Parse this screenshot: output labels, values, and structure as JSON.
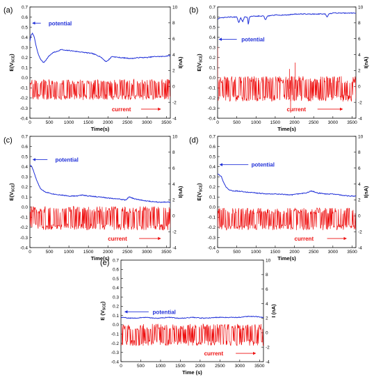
{
  "figure": {
    "colors": {
      "potential": "#1f2fd8",
      "current": "#ee1111",
      "axis": "#000000"
    }
  },
  "chart_data": [
    {
      "panel": "(a)",
      "type": "line",
      "xlabel": "Time(s)",
      "ylabel_left": "E(V",
      "ylabel_left_sub": "SCE",
      "ylabel_left_close": ")",
      "ylabel_right": "I(nA)",
      "xlim": [
        0,
        3600
      ],
      "ylim_left": [
        -0.4,
        0.7
      ],
      "ylim_right": [
        -4,
        10
      ],
      "x_ticks": [
        "0",
        "500",
        "1000",
        "1500",
        "2000",
        "2500",
        "3000",
        "3500"
      ],
      "y_left_ticks": [
        "-0.4",
        "-0.3",
        "-0.2",
        "-0.1",
        "0.0",
        "0.1",
        "0.2",
        "0.3",
        "0.4",
        "0.5",
        "0.6",
        "0.7"
      ],
      "y_right_ticks": [
        "-4",
        "-2",
        "0",
        "2",
        "4",
        "6",
        "8",
        "10"
      ],
      "annotations": {
        "potential": "potential",
        "current": "current"
      },
      "series": [
        {
          "name": "potential",
          "axis": "left",
          "x": [
            0,
            30,
            60,
            100,
            150,
            200,
            250,
            300,
            350,
            400,
            500,
            600,
            700,
            800,
            900,
            1000,
            1200,
            1400,
            1600,
            1800,
            1950,
            2000,
            2100,
            2300,
            2600,
            2800,
            3000,
            3200,
            3400,
            3600
          ],
          "y": [
            0.36,
            0.42,
            0.44,
            0.42,
            0.33,
            0.25,
            0.2,
            0.17,
            0.15,
            0.17,
            0.22,
            0.25,
            0.26,
            0.28,
            0.27,
            0.27,
            0.26,
            0.25,
            0.24,
            0.21,
            0.16,
            0.17,
            0.21,
            0.2,
            0.19,
            0.2,
            0.2,
            0.21,
            0.21,
            0.22
          ]
        },
        {
          "name": "current",
          "axis": "right",
          "baseline": -0.4,
          "amplitude": 1.3,
          "spikes": []
        }
      ]
    },
    {
      "panel": "(b)",
      "type": "line",
      "xlabel": "Time(s)",
      "ylabel_left": "E(V",
      "ylabel_left_sub": "SCE",
      "ylabel_left_close": ")",
      "ylabel_right": "I(nA)",
      "xlim": [
        0,
        3600
      ],
      "ylim_left": [
        -0.4,
        0.7
      ],
      "ylim_right": [
        -4,
        10
      ],
      "x_ticks": [
        "0",
        "500",
        "1000",
        "1500",
        "2000",
        "2500",
        "3000",
        "3500"
      ],
      "y_left_ticks": [
        "-0.4",
        "-0.3",
        "-0.2",
        "-0.1",
        "0.0",
        "0.1",
        "0.2",
        "0.3",
        "0.4",
        "0.5",
        "0.6",
        "0.7"
      ],
      "y_right_ticks": [
        "-4",
        "-2",
        "0",
        "2",
        "4",
        "6",
        "8",
        "10"
      ],
      "annotations": {
        "potential": "potential",
        "current": "current"
      },
      "series": [
        {
          "name": "potential",
          "axis": "left",
          "x": [
            0,
            50,
            300,
            500,
            550,
            600,
            650,
            700,
            780,
            800,
            830,
            900,
            1000,
            1200,
            1250,
            1300,
            1500,
            1800,
            2000,
            2500,
            2800,
            2850,
            2900,
            3000,
            3300,
            3600
          ],
          "y": [
            0.58,
            0.59,
            0.6,
            0.6,
            0.54,
            0.6,
            0.55,
            0.6,
            0.6,
            0.52,
            0.6,
            0.61,
            0.61,
            0.61,
            0.57,
            0.61,
            0.62,
            0.62,
            0.63,
            0.63,
            0.63,
            0.6,
            0.63,
            0.64,
            0.64,
            0.64
          ]
        },
        {
          "name": "current",
          "axis": "right",
          "baseline": -0.3,
          "amplitude": 1.6,
          "spikes": [
            {
              "x": 0,
              "y": 5.0
            },
            {
              "x": 1870,
              "y": 2.2
            },
            {
              "x": 1900,
              "y": -3.3
            },
            {
              "x": 2020,
              "y": 3.0
            }
          ]
        }
      ]
    },
    {
      "panel": "(c)",
      "type": "line",
      "xlabel": "Time(s)",
      "ylabel_left": "E(V",
      "ylabel_left_sub": "SCE",
      "ylabel_left_close": ")",
      "ylabel_right": "I(nA)",
      "xlim": [
        0,
        3600
      ],
      "ylim_left": [
        -0.4,
        0.7
      ],
      "ylim_right": [
        -4,
        10
      ],
      "x_ticks": [
        "0",
        "500",
        "1000",
        "1500",
        "2000",
        "2500",
        "3000",
        "3500"
      ],
      "y_left_ticks": [
        "-0.4",
        "-0.3",
        "-0.2",
        "-0.1",
        "0.0",
        "0.1",
        "0.2",
        "0.3",
        "0.4",
        "0.5",
        "0.6",
        "0.7"
      ],
      "y_right_ticks": [
        "-4",
        "-2",
        "0",
        "2",
        "4",
        "6",
        "8",
        "10"
      ],
      "annotations": {
        "potential": "potential",
        "current": "current"
      },
      "series": [
        {
          "name": "potential",
          "axis": "left",
          "x": [
            0,
            50,
            100,
            150,
            200,
            250,
            300,
            400,
            600,
            800,
            1000,
            1200,
            1350,
            1500,
            1800,
            2000,
            2300,
            2450,
            2550,
            2700,
            3000,
            3300,
            3600
          ],
          "y": [
            0.42,
            0.4,
            0.35,
            0.29,
            0.24,
            0.2,
            0.17,
            0.15,
            0.13,
            0.12,
            0.11,
            0.11,
            0.12,
            0.11,
            0.1,
            0.09,
            0.08,
            0.07,
            0.1,
            0.08,
            0.06,
            0.05,
            0.05
          ]
        },
        {
          "name": "current",
          "axis": "right",
          "baseline": -0.3,
          "amplitude": 1.5,
          "spikes": []
        }
      ]
    },
    {
      "panel": "(d)",
      "type": "line",
      "xlabel": "Time(s)",
      "ylabel_left": "E(V",
      "ylabel_left_sub": "SCE",
      "ylabel_left_close": ")",
      "ylabel_right": "I(nA)",
      "xlim": [
        0,
        3600
      ],
      "ylim_left": [
        -0.4,
        0.7
      ],
      "ylim_right": [
        -4,
        10
      ],
      "x_ticks": [
        "0",
        "500",
        "1000",
        "1500",
        "2000",
        "2500",
        "3000",
        "3500"
      ],
      "y_left_ticks": [
        "-0.4",
        "-0.3",
        "-0.2",
        "-0.1",
        "0.0",
        "0.1",
        "0.2",
        "0.3",
        "0.4",
        "0.5",
        "0.6",
        "0.7"
      ],
      "y_right_ticks": [
        "-4",
        "-2",
        "0",
        "2",
        "4",
        "6",
        "8",
        "10"
      ],
      "annotations": {
        "potential": "potential",
        "current": "current"
      },
      "series": [
        {
          "name": "potential",
          "axis": "left",
          "x": [
            0,
            50,
            100,
            150,
            200,
            250,
            300,
            400,
            500,
            700,
            1000,
            1300,
            1600,
            1900,
            2100,
            2300,
            2450,
            2600,
            2800,
            3000,
            3200,
            3400,
            3600
          ],
          "y": [
            0.33,
            0.32,
            0.3,
            0.25,
            0.21,
            0.19,
            0.17,
            0.16,
            0.16,
            0.15,
            0.14,
            0.13,
            0.13,
            0.12,
            0.13,
            0.14,
            0.16,
            0.14,
            0.13,
            0.13,
            0.12,
            0.11,
            0.11
          ]
        },
        {
          "name": "current",
          "axis": "right",
          "baseline": -0.4,
          "amplitude": 1.4,
          "spikes": []
        }
      ]
    },
    {
      "panel": "(e)",
      "type": "line",
      "xlabel": "Time (s)",
      "ylabel_left": "E (V",
      "ylabel_left_sub": "SCE",
      "ylabel_left_close": ")",
      "ylabel_right": "I (nA)",
      "xlim": [
        0,
        3600
      ],
      "ylim_left": [
        -0.4,
        0.7
      ],
      "ylim_right": [
        -4,
        10
      ],
      "x_ticks": [
        "0",
        "500",
        "1000",
        "1500",
        "2000",
        "2500",
        "3000",
        "3500"
      ],
      "y_left_ticks": [
        "-0.4",
        "-0.3",
        "-0.2",
        "-0.1",
        "0.0",
        "0.1",
        "0.2",
        "0.3",
        "0.4",
        "0.5",
        "0.6",
        "0.7"
      ],
      "y_right_ticks": [
        "-4",
        "-2",
        "0",
        "2",
        "4",
        "6",
        "8",
        "10"
      ],
      "annotations": {
        "potential": "potential",
        "current": "current"
      },
      "series": [
        {
          "name": "potential",
          "axis": "left",
          "x": [
            0,
            300,
            600,
            900,
            1200,
            1500,
            1800,
            2100,
            2400,
            2700,
            3000,
            3200,
            3400,
            3600
          ],
          "y": [
            0.08,
            0.07,
            0.08,
            0.07,
            0.08,
            0.07,
            0.08,
            0.07,
            0.08,
            0.08,
            0.08,
            0.09,
            0.09,
            0.08
          ]
        },
        {
          "name": "current",
          "axis": "right",
          "baseline": -0.3,
          "amplitude": 1.5,
          "spikes": []
        }
      ]
    }
  ]
}
